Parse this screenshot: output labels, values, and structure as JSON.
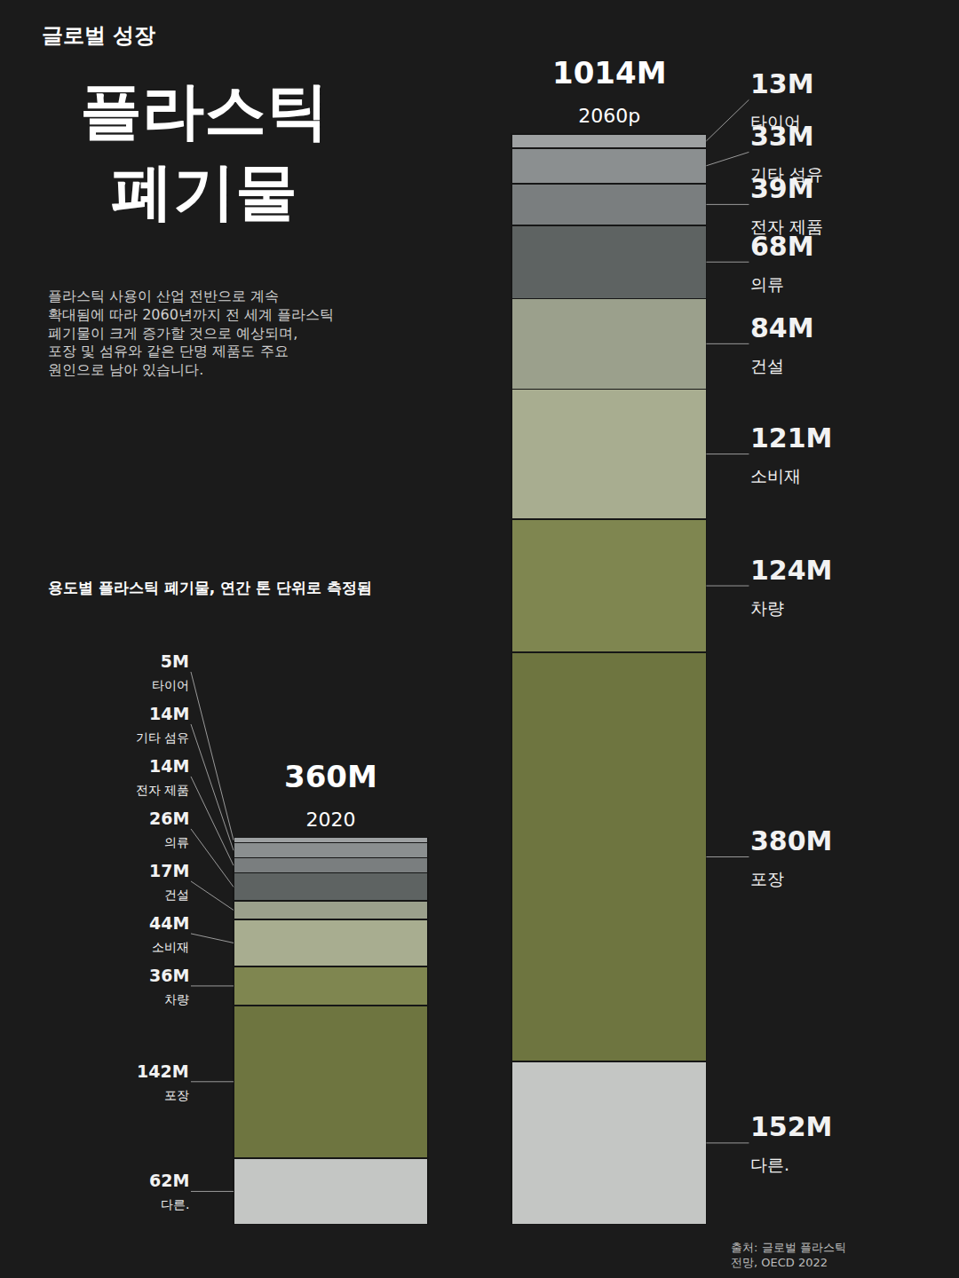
{
  "chart_data": {
    "type": "bar",
    "stacked": true,
    "data_labels": true,
    "tick_labels": false,
    "kicker": "글로벌 성장",
    "title": "플라스틱 폐기물",
    "description": [
      "플라스틱 사용이 산업 전반으로 계속",
      "확대됨에 따라 2060년까지 전 세계 플라스틱",
      "폐기물이 크게 증가할 것으로 예상되며,",
      "포장 및 섬유와 같은 단명 제품도 주요",
      "원인으로 남아 있습니다."
    ],
    "subtitle": "용도별 플라스틱 폐기물, 연간 톤 단위로 측정됨",
    "source": [
      "출처: 글로벌 플라스틱",
      "전망, OECD 2022"
    ],
    "categories": [
      "2020",
      "2060p"
    ],
    "totals": [
      360,
      1014
    ],
    "total_labels": [
      "360M",
      "1014M"
    ],
    "series": [
      {
        "name": "타이어",
        "color": "#9ea1a2",
        "values": [
          5,
          13
        ],
        "value_labels": [
          "5M",
          "13M"
        ]
      },
      {
        "name": "기타 섬유",
        "color": "#8b8f90",
        "values": [
          14,
          33
        ],
        "value_labels": [
          "14M",
          "33M"
        ]
      },
      {
        "name": "전자 제품",
        "color": "#7a7e7f",
        "values": [
          14,
          39
        ],
        "value_labels": [
          "14M",
          "39M"
        ]
      },
      {
        "name": "의류",
        "color": "#5e6362",
        "values": [
          26,
          68
        ],
        "value_labels": [
          "26M",
          "68M"
        ]
      },
      {
        "name": "건설",
        "color": "#9ba08c",
        "values": [
          17,
          84
        ],
        "value_labels": [
          "17M",
          "84M"
        ]
      },
      {
        "name": "소비재",
        "color": "#a8ad90",
        "values": [
          44,
          121
        ],
        "value_labels": [
          "44M",
          "121M"
        ]
      },
      {
        "name": "차량",
        "color": "#7f8650",
        "values": [
          36,
          124
        ],
        "value_labels": [
          "36M",
          "124M"
        ]
      },
      {
        "name": "포장",
        "color": "#6e7540",
        "values": [
          142,
          380
        ],
        "value_labels": [
          "142M",
          "380M"
        ]
      },
      {
        "name": "다른.",
        "color": "#c4c6c4",
        "values": [
          62,
          152
        ],
        "value_labels": [
          "62M",
          "152M"
        ]
      }
    ]
  }
}
